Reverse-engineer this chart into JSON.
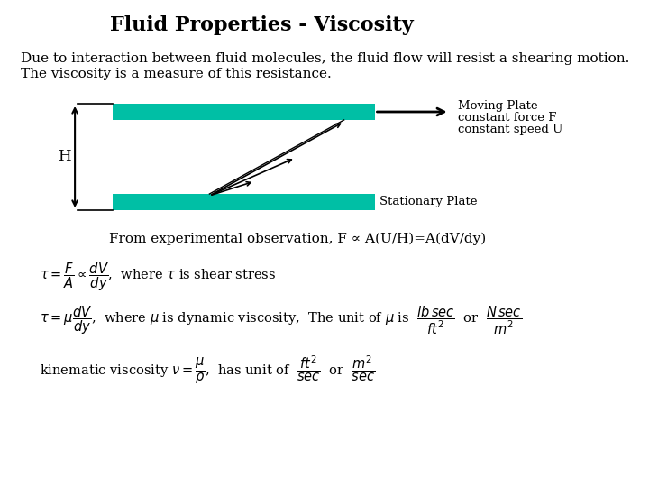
{
  "title": "Fluid Properties - Viscosity",
  "bg_color": "#ffffff",
  "title_fontsize": 16,
  "body_fontsize": 11,
  "teal_color": "#00BFA5",
  "line1": "Due to interaction between fluid molecules, the fluid flow will resist a shearing motion.",
  "line2": "The viscosity is a measure of this resistance.",
  "moving_plate_label_1": "Moving Plate",
  "moving_plate_label_2": "constant force F",
  "moving_plate_label_3": "constant speed U",
  "stationary_plate_label": "Stationary Plate",
  "h_label": "H",
  "from_exp": "From experimental observation, F ∝ A(U/H)=A(dV/dy)"
}
